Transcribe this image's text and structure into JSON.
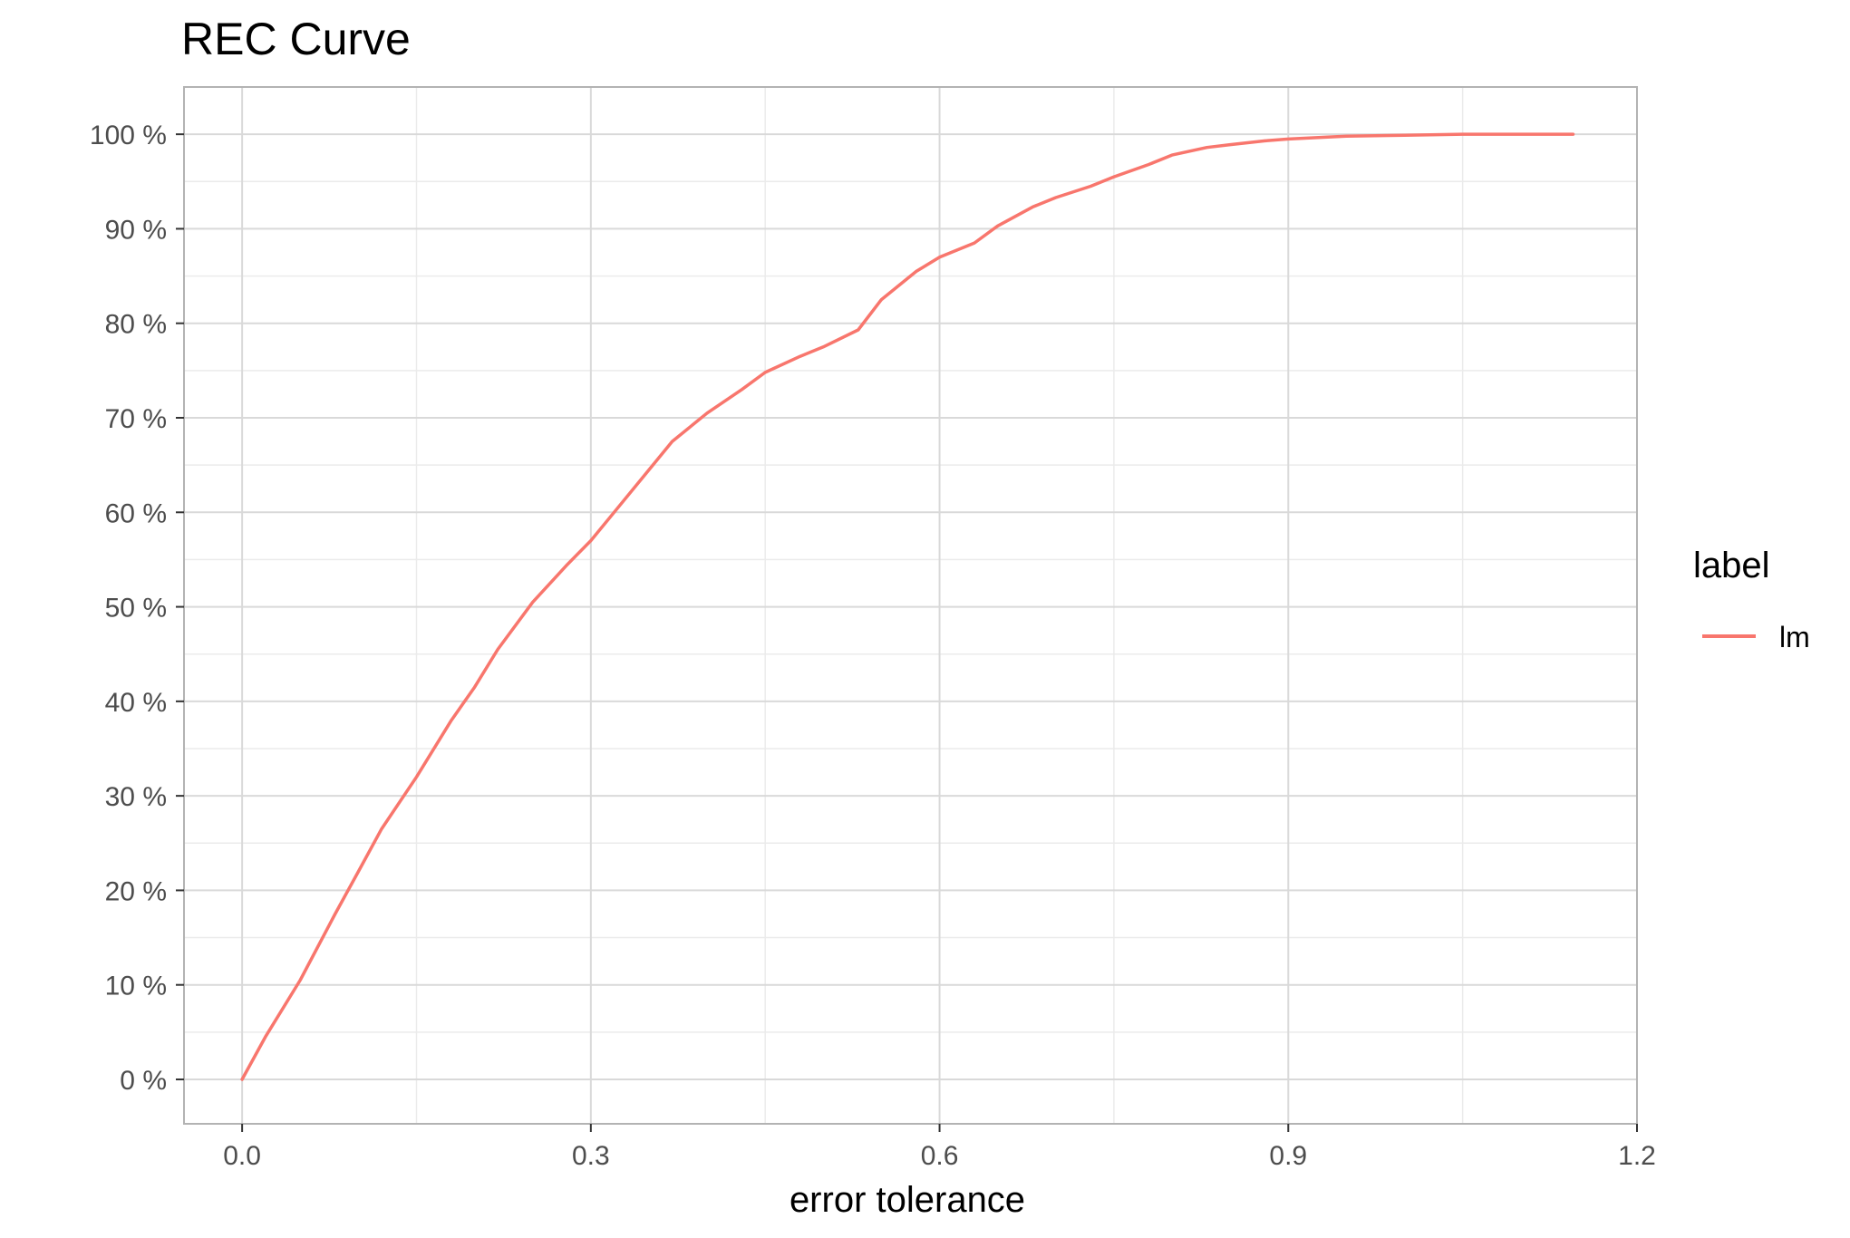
{
  "chart_data": {
    "type": "line",
    "title": "REC Curve",
    "xlabel": "error tolerance",
    "ylabel": "",
    "xlim": [
      -0.05,
      1.2
    ],
    "ylim": [
      -4.7,
      105
    ],
    "x_ticks": [
      0.0,
      0.3,
      0.6,
      0.9,
      1.2
    ],
    "x_tick_labels": [
      "0.0",
      "0.3",
      "0.6",
      "0.9",
      "1.2"
    ],
    "y_ticks": [
      0,
      10,
      20,
      30,
      40,
      50,
      60,
      70,
      80,
      90,
      100
    ],
    "y_tick_labels": [
      "0 %",
      "10 %",
      "20 %",
      "30 %",
      "40 %",
      "50 %",
      "60 %",
      "70 %",
      "80 %",
      "90 %",
      "100 %"
    ],
    "grid": true,
    "legend": {
      "title": "label",
      "position": "right"
    },
    "series": [
      {
        "name": "lm",
        "color": "#F8766D",
        "x": [
          0.0,
          0.02,
          0.05,
          0.08,
          0.1,
          0.12,
          0.15,
          0.18,
          0.2,
          0.22,
          0.25,
          0.28,
          0.3,
          0.32,
          0.35,
          0.37,
          0.4,
          0.43,
          0.45,
          0.48,
          0.5,
          0.53,
          0.55,
          0.58,
          0.6,
          0.63,
          0.65,
          0.68,
          0.7,
          0.73,
          0.75,
          0.78,
          0.8,
          0.83,
          0.85,
          0.88,
          0.9,
          0.95,
          1.0,
          1.05,
          1.1,
          1.145
        ],
        "y": [
          0,
          4.5,
          10.5,
          17.5,
          22,
          26.5,
          32,
          38,
          41.5,
          45.5,
          50.5,
          54.5,
          57,
          60,
          64.5,
          67.5,
          70.5,
          73,
          74.8,
          76.5,
          77.5,
          79.3,
          82.5,
          85.5,
          87,
          88.5,
          90.3,
          92.3,
          93.3,
          94.5,
          95.5,
          96.8,
          97.8,
          98.6,
          98.9,
          99.3,
          99.5,
          99.8,
          99.9,
          100,
          100,
          100
        ]
      }
    ]
  }
}
